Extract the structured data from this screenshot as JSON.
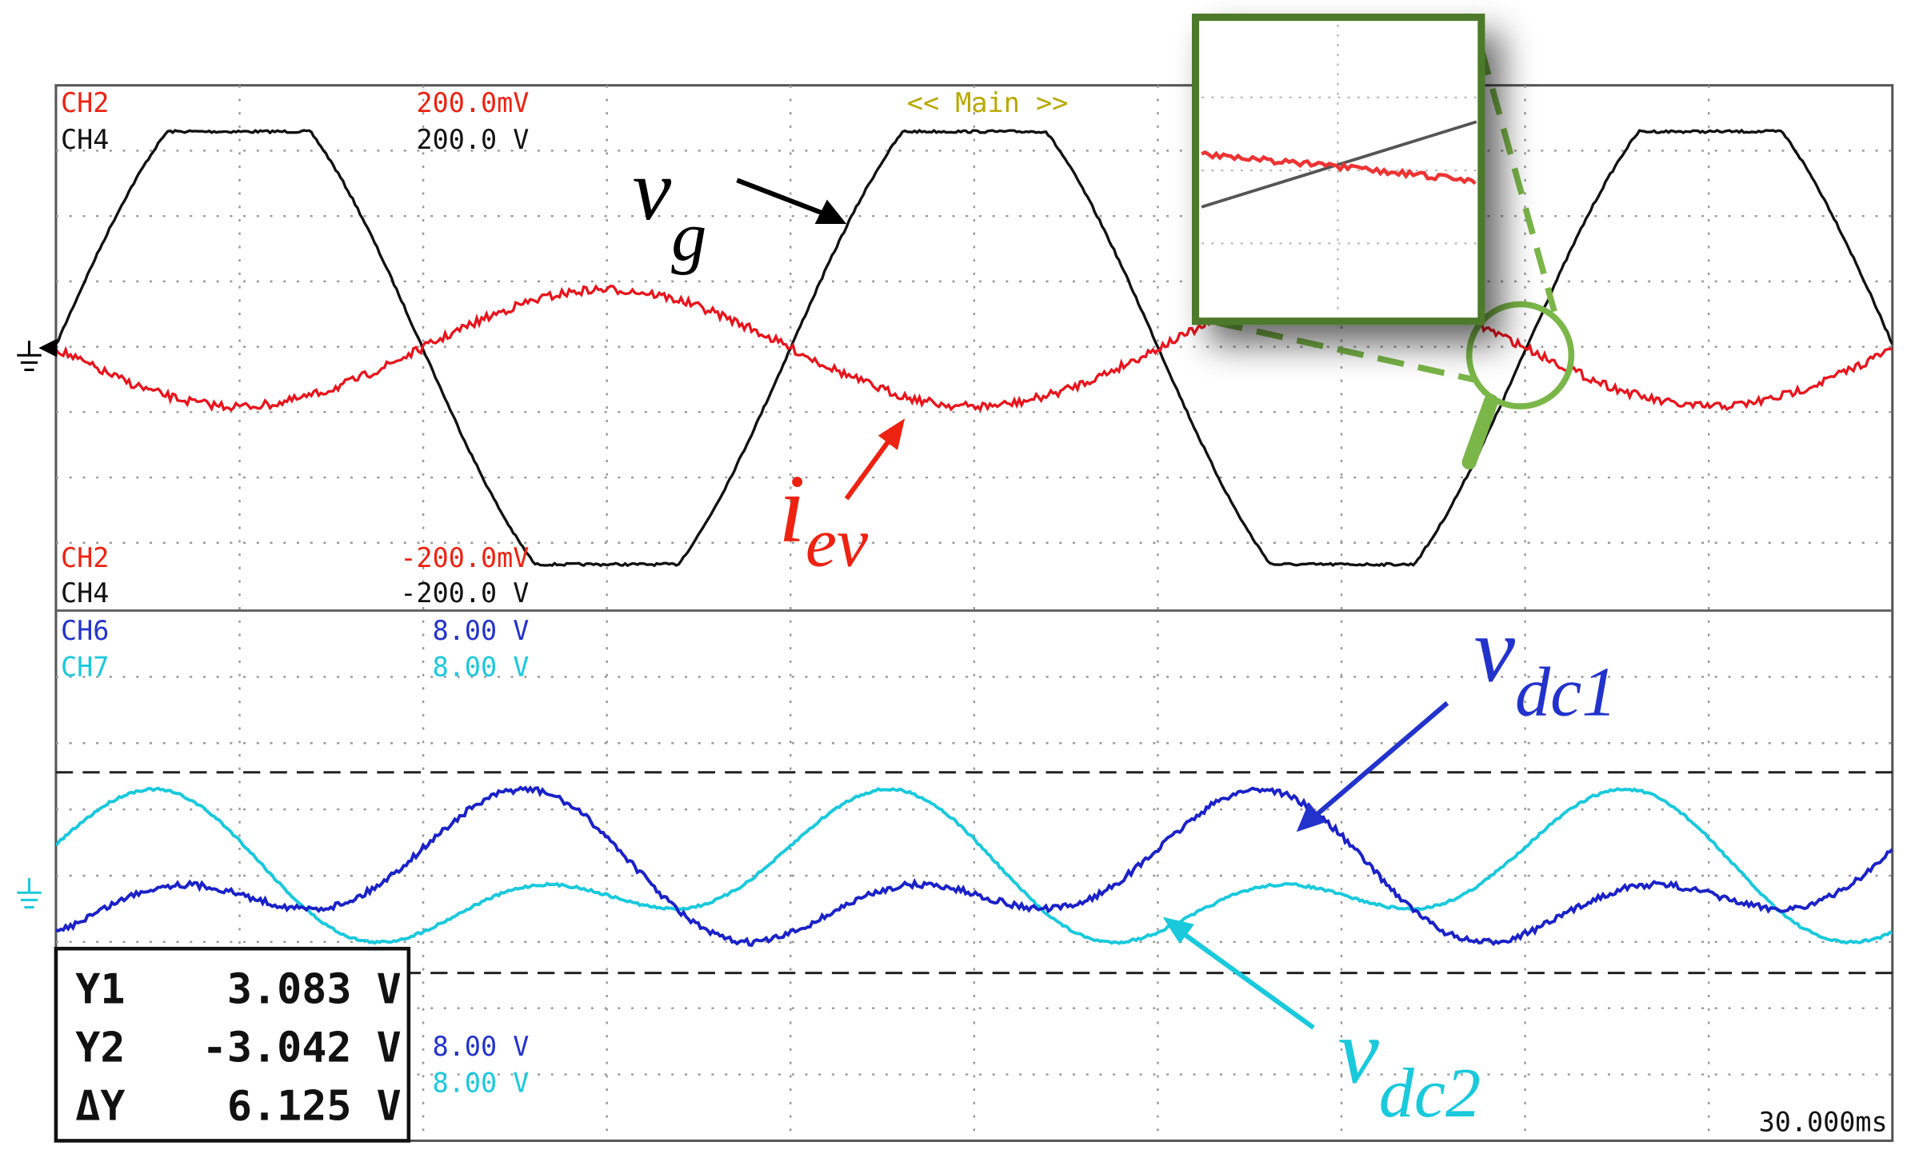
{
  "upper_top": [
    {
      "name": "CH2",
      "value": "200.0mV"
    },
    {
      "name": "CH4",
      "value": "200.0 V"
    }
  ],
  "upper_bottom": [
    {
      "name": "CH2",
      "value": "-200.0mV"
    },
    {
      "name": "CH4",
      "value": "-200.0 V"
    }
  ],
  "lower_top": [
    {
      "name": "CH6",
      "value": "8.00 V"
    },
    {
      "name": "CH7",
      "value": "8.00 V"
    }
  ],
  "lower_bottom": [
    {
      "value": "8.00 V"
    },
    {
      "value": "8.00 V"
    }
  ],
  "timebase": "<< Main >>",
  "time_scale": "30.000ms",
  "cursor_readout": [
    {
      "label": "Y1",
      "value": "3.083 V"
    },
    {
      "label": "Y2",
      "value": "-3.042 V"
    },
    {
      "label": "ΔY",
      "value": "6.125 V"
    }
  ],
  "signal_labels": {
    "vg": {
      "base": "v",
      "sub": "g"
    },
    "iev": {
      "base": "i",
      "sub": "ev"
    },
    "vdc1": {
      "base": "v",
      "sub": "dc1"
    },
    "vdc2": {
      "base": "v",
      "sub": "dc2"
    }
  }
}
